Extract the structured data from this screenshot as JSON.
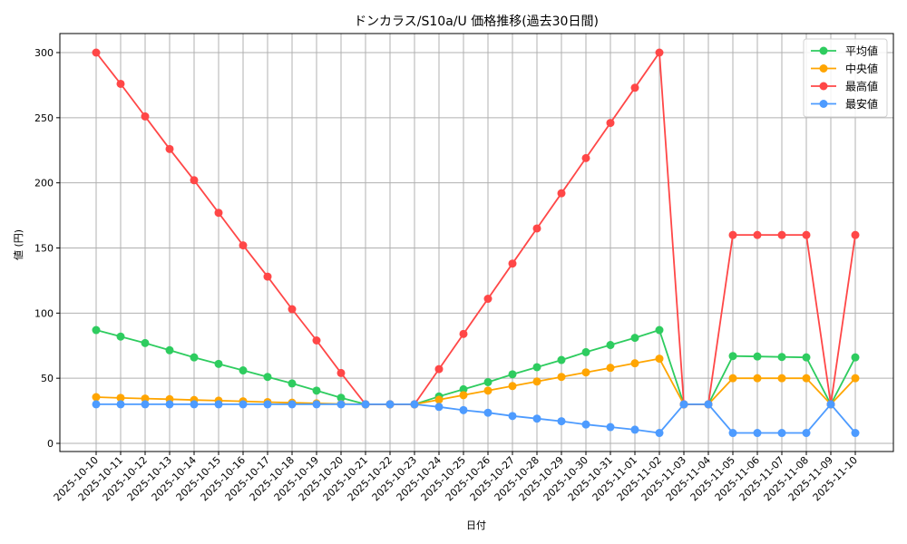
{
  "chart_data": {
    "type": "line",
    "title": "ドンカラス/S10a/U 価格推移(過去30日間)",
    "xlabel": "日付",
    "ylabel": "値 (円)",
    "ylim": [
      -8,
      315
    ],
    "yticks": [
      0,
      50,
      100,
      150,
      200,
      250,
      300
    ],
    "grid": true,
    "legend_position": "upper right",
    "categories": [
      "2025-10-10",
      "2025-10-11",
      "2025-10-12",
      "2025-10-13",
      "2025-10-14",
      "2025-10-15",
      "2025-10-16",
      "2025-10-17",
      "2025-10-18",
      "2025-10-19",
      "2025-10-20",
      "2025-10-21",
      "2025-10-22",
      "2025-10-23",
      "2025-10-24",
      "2025-10-25",
      "2025-10-26",
      "2025-10-27",
      "2025-10-28",
      "2025-10-29",
      "2025-10-30",
      "2025-10-31",
      "2025-11-01",
      "2025-11-02",
      "2025-11-03",
      "2025-11-04",
      "2025-11-05",
      "2025-11-06",
      "2025-11-07",
      "2025-11-08",
      "2025-11-09",
      "2025-11-10"
    ],
    "series": [
      {
        "name": "平均値",
        "color": "#2ecc5f",
        "values": [
          87,
          82,
          77,
          71.5,
          66,
          61,
          56,
          51,
          46,
          40.5,
          35,
          30,
          30,
          30,
          36,
          41.5,
          47,
          53,
          58.5,
          64,
          70,
          75.5,
          81,
          87,
          30,
          30,
          67,
          66.7,
          66.3,
          66,
          30,
          66
        ]
      },
      {
        "name": "中央値",
        "color": "#ffa500",
        "values": [
          35.5,
          34.9,
          34.4,
          33.9,
          33.3,
          32.8,
          32.3,
          31.7,
          31.2,
          30.7,
          30.2,
          30,
          30,
          30,
          33.5,
          37,
          40.5,
          44,
          47.5,
          51,
          54.5,
          58,
          61.5,
          65,
          30,
          30,
          50,
          50,
          50,
          50,
          30,
          50
        ]
      },
      {
        "name": "最高値",
        "color": "#ff4747",
        "values": [
          300,
          276,
          251,
          226,
          202,
          177,
          152,
          128,
          103,
          79,
          54,
          30,
          30,
          30,
          57,
          84,
          111,
          138,
          165,
          192,
          219,
          246,
          273,
          300,
          30,
          30,
          160,
          160,
          160,
          160,
          30,
          160
        ]
      },
      {
        "name": "最安値",
        "color": "#4d9bff",
        "values": [
          30,
          30,
          30,
          30,
          30,
          30,
          30,
          30,
          30,
          30,
          30,
          30,
          30,
          30,
          28,
          25.5,
          23.5,
          21,
          19,
          17,
          14.5,
          12.5,
          10.5,
          8,
          30,
          30,
          8,
          8,
          8,
          8,
          30,
          8
        ]
      }
    ]
  },
  "layout_colors": {
    "grid": "#b0b0b0",
    "axis": "#000000"
  }
}
